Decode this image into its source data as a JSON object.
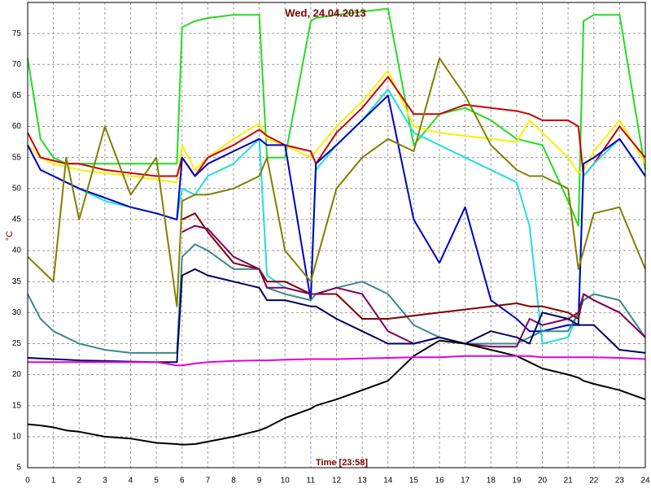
{
  "chart_data": {
    "type": "line",
    "title": "Wed, 24.04.2013",
    "x_label": "Time [23:58]",
    "y_label": "°C",
    "x": [
      0,
      0.5,
      1,
      1.5,
      2,
      3,
      4,
      5,
      5.8,
      6,
      6.5,
      7,
      8,
      9,
      9.3,
      10,
      11,
      11.2,
      12,
      13,
      14,
      15,
      16,
      17,
      18,
      19,
      19.5,
      20,
      21,
      21.4,
      21.6,
      22,
      23,
      24
    ],
    "xlim": [
      0,
      24
    ],
    "xticks": [
      0,
      1,
      2,
      3,
      4,
      5,
      6,
      7,
      8,
      9,
      10,
      11,
      12,
      13,
      14,
      15,
      16,
      17,
      18,
      19,
      20,
      21,
      22,
      23,
      24
    ],
    "ylim": [
      5,
      80
    ],
    "yticks": [
      5,
      10,
      15,
      20,
      25,
      30,
      35,
      40,
      45,
      50,
      55,
      60,
      65,
      70,
      75
    ],
    "grid": true,
    "series": [
      {
        "color": "#22dd22",
        "values": [
          71,
          58,
          55,
          54,
          54,
          54,
          54,
          54,
          54,
          76,
          77,
          77.5,
          78,
          78,
          55,
          55,
          77,
          77.5,
          78,
          78.5,
          79,
          57,
          62,
          63,
          61,
          58,
          57.5,
          57,
          48,
          44,
          77,
          78,
          78,
          53
        ]
      },
      {
        "color": "#ffee00",
        "values": [
          57,
          55,
          54,
          53.5,
          53,
          52.5,
          52,
          51.5,
          51,
          57,
          53,
          55,
          58,
          60.5,
          58,
          57,
          55,
          56,
          60,
          64,
          69,
          60,
          59,
          58.5,
          58,
          57.5,
          61,
          59,
          55,
          52.5,
          53,
          56,
          61,
          54
        ]
      },
      {
        "color": "#cc0000",
        "values": [
          59,
          55,
          54.5,
          54,
          54,
          53,
          52.5,
          52,
          52,
          55,
          52,
          55,
          57,
          59.5,
          58.5,
          57,
          56,
          54,
          59,
          63,
          68,
          62,
          62,
          63.5,
          63,
          62.5,
          62,
          61,
          61,
          60,
          52,
          54,
          60,
          55
        ]
      },
      {
        "color": "#22dddd",
        "values": [
          57,
          53,
          52,
          51,
          50,
          48,
          47,
          46,
          45,
          50,
          49,
          52,
          54,
          58,
          36,
          34,
          33,
          53,
          57,
          61,
          66,
          59,
          57,
          55,
          53,
          51,
          44,
          25,
          26,
          30,
          52,
          54,
          58,
          52
        ]
      },
      {
        "color": "#0000c0",
        "values": [
          57,
          53,
          52,
          51,
          50,
          48.5,
          47,
          46,
          45,
          55,
          52,
          54,
          56,
          58,
          57,
          57,
          32,
          54,
          57,
          61,
          65,
          45,
          38,
          47,
          32,
          29,
          27,
          27,
          28,
          28,
          54,
          55,
          58,
          52
        ]
      },
      {
        "color": "#808000",
        "values": [
          39,
          37,
          35,
          55,
          45,
          60,
          49,
          55,
          31,
          48,
          49,
          49,
          50,
          52,
          55,
          40,
          35,
          38,
          50,
          55,
          58,
          56,
          71,
          65,
          57,
          53,
          52,
          52,
          50,
          37,
          40,
          46,
          47,
          37
        ]
      },
      {
        "color": "#3a8a8a",
        "values": [
          33,
          29,
          27,
          26,
          25,
          24,
          23.5,
          23.5,
          23.5,
          39,
          41,
          40,
          37,
          37,
          34,
          33,
          32,
          33,
          34,
          35,
          33,
          28,
          26,
          25,
          25,
          25,
          26,
          27,
          27,
          30,
          32,
          33,
          32,
          26
        ]
      },
      {
        "color": "#800000",
        "values": [
          null,
          null,
          null,
          null,
          null,
          null,
          null,
          null,
          null,
          45,
          46,
          43,
          38,
          37,
          35,
          35,
          33,
          33,
          33,
          29,
          29,
          29.5,
          30,
          30.5,
          31,
          31.5,
          31,
          31,
          30,
          29,
          33,
          32,
          30,
          26
        ]
      },
      {
        "color": "#800060",
        "values": [
          null,
          null,
          null,
          null,
          null,
          null,
          null,
          null,
          null,
          43,
          44,
          43.5,
          39,
          37,
          34,
          34,
          33,
          33,
          34,
          33,
          27,
          25,
          26,
          25,
          24.5,
          24.5,
          29,
          28,
          29,
          30,
          33,
          32,
          30,
          26
        ]
      },
      {
        "color": "#000060",
        "values": [
          22.7,
          22.6,
          22.5,
          22.4,
          22.3,
          22.2,
          22.1,
          22,
          22,
          36,
          37,
          36,
          35,
          34,
          32,
          32,
          31,
          31,
          29,
          27,
          25,
          25,
          26,
          25,
          27,
          26,
          25,
          30,
          29,
          28,
          28,
          28,
          24,
          23.5
        ]
      },
      {
        "color": "#000000",
        "values": [
          12,
          11.8,
          11.5,
          11,
          10.8,
          10,
          9.7,
          9,
          8.8,
          8.7,
          8.8,
          9.2,
          10,
          11,
          11.5,
          13,
          14.5,
          15,
          16,
          17.5,
          19,
          23,
          25.5,
          25,
          24,
          23,
          22,
          21,
          20,
          19.5,
          19,
          18.5,
          17.5,
          16
        ]
      },
      {
        "color": "#e000e0",
        "values": [
          22,
          22,
          22,
          22,
          22,
          22,
          22,
          22,
          21.5,
          21.5,
          21.8,
          22,
          22.2,
          22.3,
          22.3,
          22.4,
          22.5,
          22.5,
          22.5,
          22.6,
          22.7,
          22.8,
          22.8,
          23,
          23,
          23,
          23,
          22.8,
          22.8,
          22.8,
          22.8,
          22.8,
          22.7,
          22.5
        ]
      }
    ]
  }
}
